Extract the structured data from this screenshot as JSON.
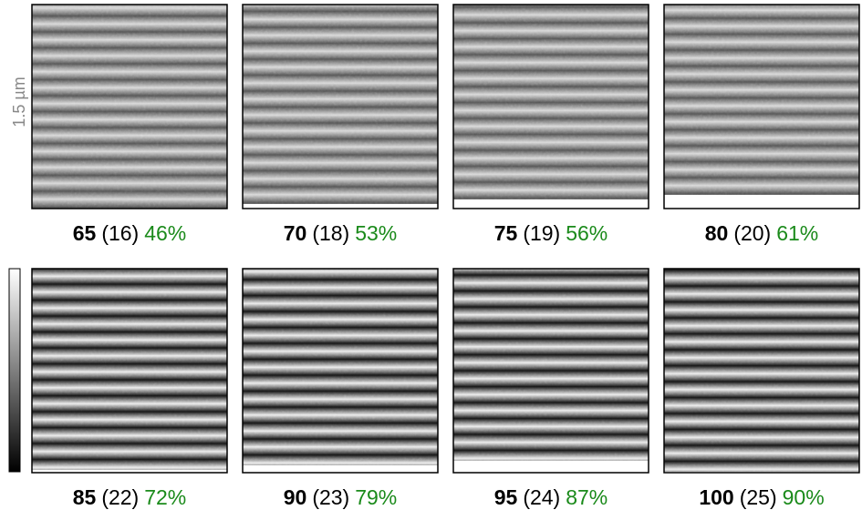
{
  "scale_label": "1.5 µm",
  "panels": [
    {
      "pitch": "65",
      "count": "(16)",
      "percent": "46%"
    },
    {
      "pitch": "70",
      "count": "(18)",
      "percent": "53%"
    },
    {
      "pitch": "75",
      "count": "(19)",
      "percent": "56%"
    },
    {
      "pitch": "80",
      "count": "(20)",
      "percent": "61%"
    },
    {
      "pitch": "85",
      "count": "(22)",
      "percent": "72%"
    },
    {
      "pitch": "90",
      "count": "(23)",
      "percent": "79%"
    },
    {
      "pitch": "95",
      "count": "(24)",
      "percent": "87%"
    },
    {
      "pitch": "100",
      "count": "(25)",
      "percent": "90%"
    }
  ]
}
